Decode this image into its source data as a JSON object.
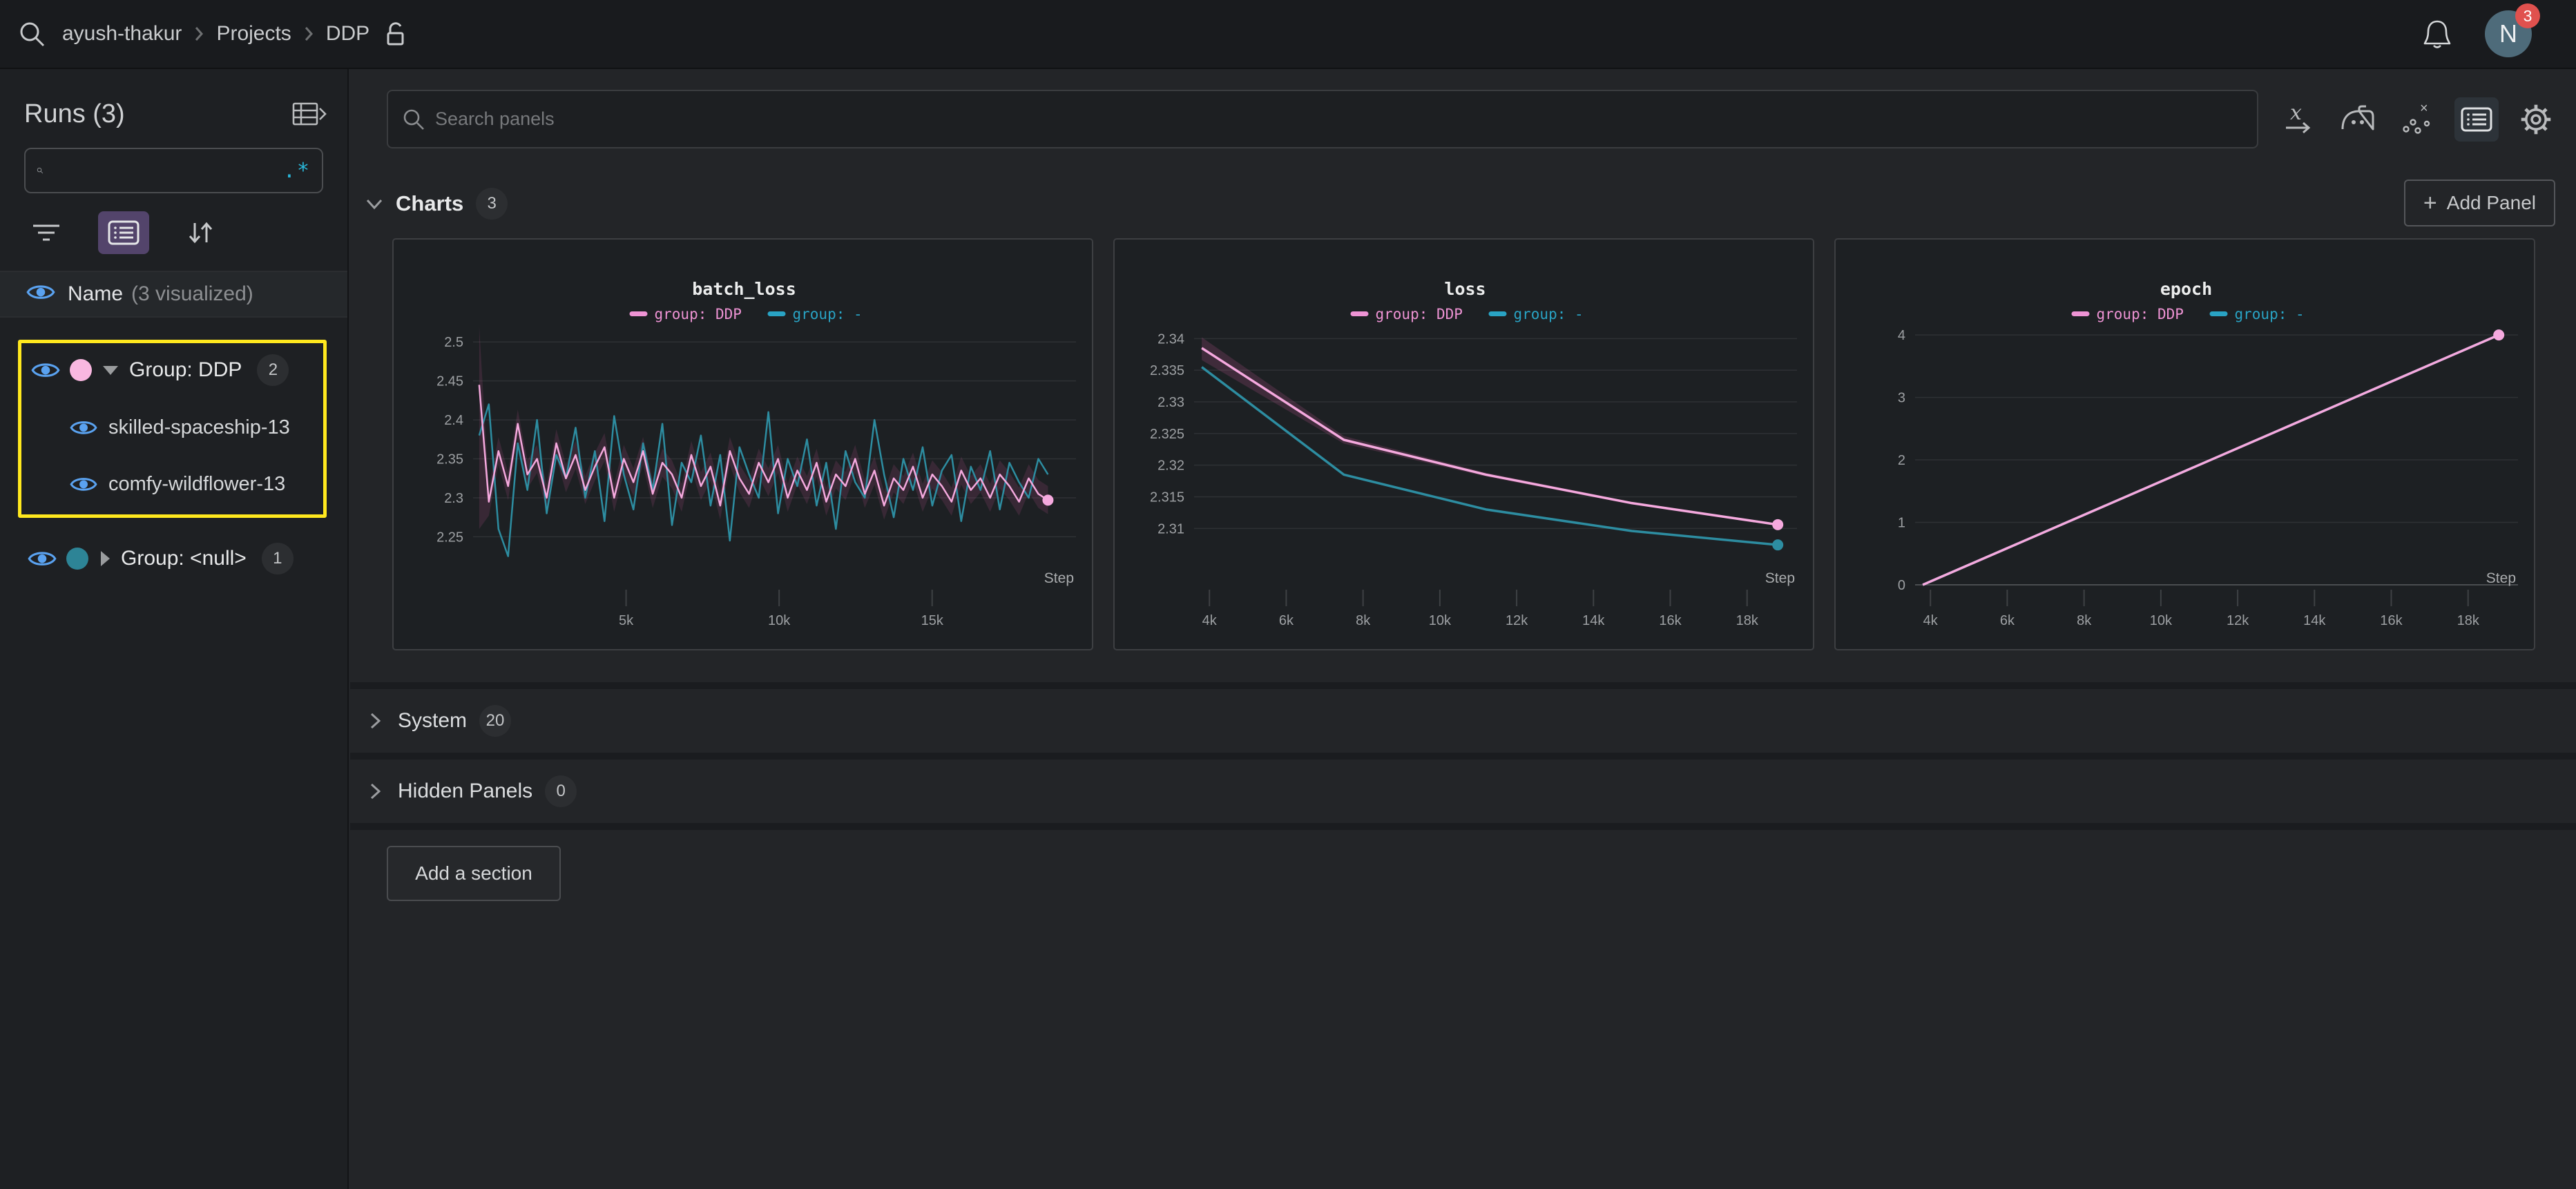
{
  "navbar": {
    "breadcrumb": [
      "ayush-thakur",
      "Projects",
      "DDP"
    ],
    "avatar_letter": "N",
    "notification_count": "3"
  },
  "sidebar": {
    "title": "Runs (3)",
    "search_value": "",
    "regex_label": ".*",
    "header": {
      "name": "Name",
      "visualized": "(3 visualized)"
    },
    "groups": [
      {
        "label": "Group: DDP",
        "count": "2",
        "color": "#f9b7e0",
        "expanded": true,
        "highlighted": true,
        "runs": [
          "skilled-spaceship-13",
          "comfy-wildflower-13"
        ]
      },
      {
        "label": "Group: <null>",
        "count": "1",
        "color": "#2d8496",
        "expanded": false,
        "highlighted": false,
        "runs": []
      }
    ]
  },
  "main": {
    "search_placeholder": "Search panels",
    "add_panel_label": "Add Panel",
    "add_section_label": "Add a section",
    "sections": [
      {
        "label": "Charts",
        "count": "3"
      },
      {
        "label": "System",
        "count": "20"
      },
      {
        "label": "Hidden Panels",
        "count": "0"
      }
    ]
  },
  "colors": {
    "accent_pink": "#f5a9de",
    "accent_teal": "#2d8da1",
    "legend_pink": "#ee93d4",
    "legend_teal": "#29a3c4",
    "highlight_yellow": "#ffe81e",
    "eye_blue": "#5aa2f0",
    "badge_red": "#e0514e",
    "avatar_bg": "#4e6b7a",
    "active_purple": "#53446b"
  },
  "chart_data": [
    {
      "type": "line",
      "title": "batch_loss",
      "legend": [
        {
          "label": "group: DDP",
          "color": "#ee93d4"
        },
        {
          "label": "group: -",
          "color": "#29a3c4"
        }
      ],
      "x_axis": {
        "min": 0,
        "max": 19700,
        "ticks": [
          5000,
          10000,
          15000
        ],
        "tick_labels": [
          "5k",
          "10k",
          "15k"
        ],
        "label": "Step"
      },
      "y_axis": {
        "min": 2.222,
        "max": 2.525,
        "ticks": [
          2.25,
          2.3,
          2.35,
          2.4,
          2.45,
          2.5
        ],
        "tick_labels": [
          "2.25",
          "2.3",
          "2.35",
          "2.4",
          "2.45",
          "2.5"
        ]
      },
      "x_start": 200,
      "x_step": 315,
      "band": {
        "series": "group: DDP",
        "delta": 0.018,
        "color": "rgba(200,90,150,0.16)",
        "start_upper": 2.52,
        "start_lower": 2.26
      },
      "series": [
        {
          "name": "group: -",
          "color": "#2d8da1",
          "values": [
            2.38,
            2.42,
            2.26,
            2.225,
            2.37,
            2.31,
            2.4,
            2.28,
            2.355,
            2.325,
            2.39,
            2.3,
            2.36,
            2.27,
            2.405,
            2.33,
            2.285,
            2.37,
            2.31,
            2.395,
            2.265,
            2.345,
            2.32,
            2.38,
            2.29,
            2.355,
            2.245,
            2.365,
            2.33,
            2.3,
            2.41,
            2.28,
            2.35,
            2.315,
            2.375,
            2.29,
            2.345,
            2.26,
            2.36,
            2.32,
            2.3,
            2.4,
            2.33,
            2.275,
            2.35,
            2.31,
            2.365,
            2.29,
            2.335,
            2.355,
            2.27,
            2.34,
            2.31,
            2.36,
            2.285,
            2.345,
            2.32,
            2.3,
            2.35,
            2.33
          ]
        },
        {
          "name": "group: DDP",
          "color": "#f5a9de",
          "end_dot": true,
          "values": [
            2.445,
            2.295,
            2.36,
            2.315,
            2.395,
            2.33,
            2.35,
            2.3,
            2.37,
            2.325,
            2.355,
            2.31,
            2.34,
            2.365,
            2.3,
            2.35,
            2.32,
            2.36,
            2.305,
            2.345,
            2.33,
            2.3,
            2.355,
            2.315,
            2.34,
            2.29,
            2.36,
            2.325,
            2.305,
            2.345,
            2.32,
            2.35,
            2.3,
            2.335,
            2.31,
            2.345,
            2.295,
            2.33,
            2.315,
            2.35,
            2.305,
            2.335,
            2.29,
            2.325,
            2.31,
            2.34,
            2.3,
            2.33,
            2.315,
            2.295,
            2.335,
            2.31,
            2.325,
            2.3,
            2.33,
            2.315,
            2.295,
            2.325,
            2.305,
            2.297
          ]
        }
      ]
    },
    {
      "type": "line",
      "title": "loss",
      "legend": [
        {
          "label": "group: DDP",
          "color": "#ee93d4"
        },
        {
          "label": "group: -",
          "color": "#29a3c4"
        }
      ],
      "x_axis": {
        "min": 3600,
        "max": 19300,
        "ticks": [
          4000,
          6000,
          8000,
          10000,
          12000,
          14000,
          16000,
          18000
        ],
        "tick_labels": [
          "4k",
          "6k",
          "8k",
          "10k",
          "12k",
          "14k",
          "16k",
          "18k"
        ],
        "label": "Step"
      },
      "y_axis": {
        "min": 2.306,
        "max": 2.342,
        "ticks": [
          2.31,
          2.315,
          2.32,
          2.325,
          2.33,
          2.335,
          2.34
        ],
        "tick_labels": [
          "2.31",
          "2.315",
          "2.32",
          "2.325",
          "2.33",
          "2.335",
          "2.34"
        ]
      },
      "band": {
        "series": "group: DDP",
        "color": "rgba(200,90,150,0.20)",
        "x": [
          3800,
          7500,
          11200,
          15000,
          18800
        ],
        "upper": [
          2.3402,
          2.3246,
          2.3188,
          2.3142,
          2.3107
        ],
        "lower": [
          2.3366,
          2.3234,
          2.3182,
          2.3138,
          2.3105
        ]
      },
      "series": [
        {
          "name": "group: -",
          "color": "#2d8da1",
          "end_dot": true,
          "x": [
            3800,
            7500,
            11200,
            15000,
            18800
          ],
          "values": [
            2.3355,
            2.3185,
            2.313,
            2.3096,
            2.3074
          ]
        },
        {
          "name": "group: DDP",
          "color": "#f5a9de",
          "end_dot": true,
          "x": [
            3800,
            7500,
            11200,
            15000,
            18800
          ],
          "values": [
            2.3385,
            2.324,
            2.3185,
            2.314,
            2.3106
          ]
        }
      ]
    },
    {
      "type": "line",
      "title": "epoch",
      "legend": [
        {
          "label": "group: DDP",
          "color": "#ee93d4"
        },
        {
          "label": "group: -",
          "color": "#29a3c4"
        }
      ],
      "x_axis": {
        "min": 3600,
        "max": 19300,
        "ticks": [
          4000,
          6000,
          8000,
          10000,
          12000,
          14000,
          16000,
          18000
        ],
        "tick_labels": [
          "4k",
          "6k",
          "8k",
          "10k",
          "12k",
          "14k",
          "16k",
          "18k"
        ],
        "label": "Step"
      },
      "y_axis": {
        "min": 0,
        "max": 4.2,
        "ticks": [
          0,
          1,
          2,
          3,
          4
        ],
        "tick_labels": [
          "0",
          "1",
          "2",
          "3",
          "4"
        ],
        "baseline": 0
      },
      "series": [
        {
          "name": "group: -",
          "color": "#2d8da1",
          "x": [
            3800,
            18800
          ],
          "values": [
            0,
            4
          ]
        },
        {
          "name": "group: DDP",
          "color": "#f5a9de",
          "end_dot": true,
          "x": [
            3800,
            18800
          ],
          "values": [
            0,
            4
          ]
        }
      ]
    }
  ]
}
